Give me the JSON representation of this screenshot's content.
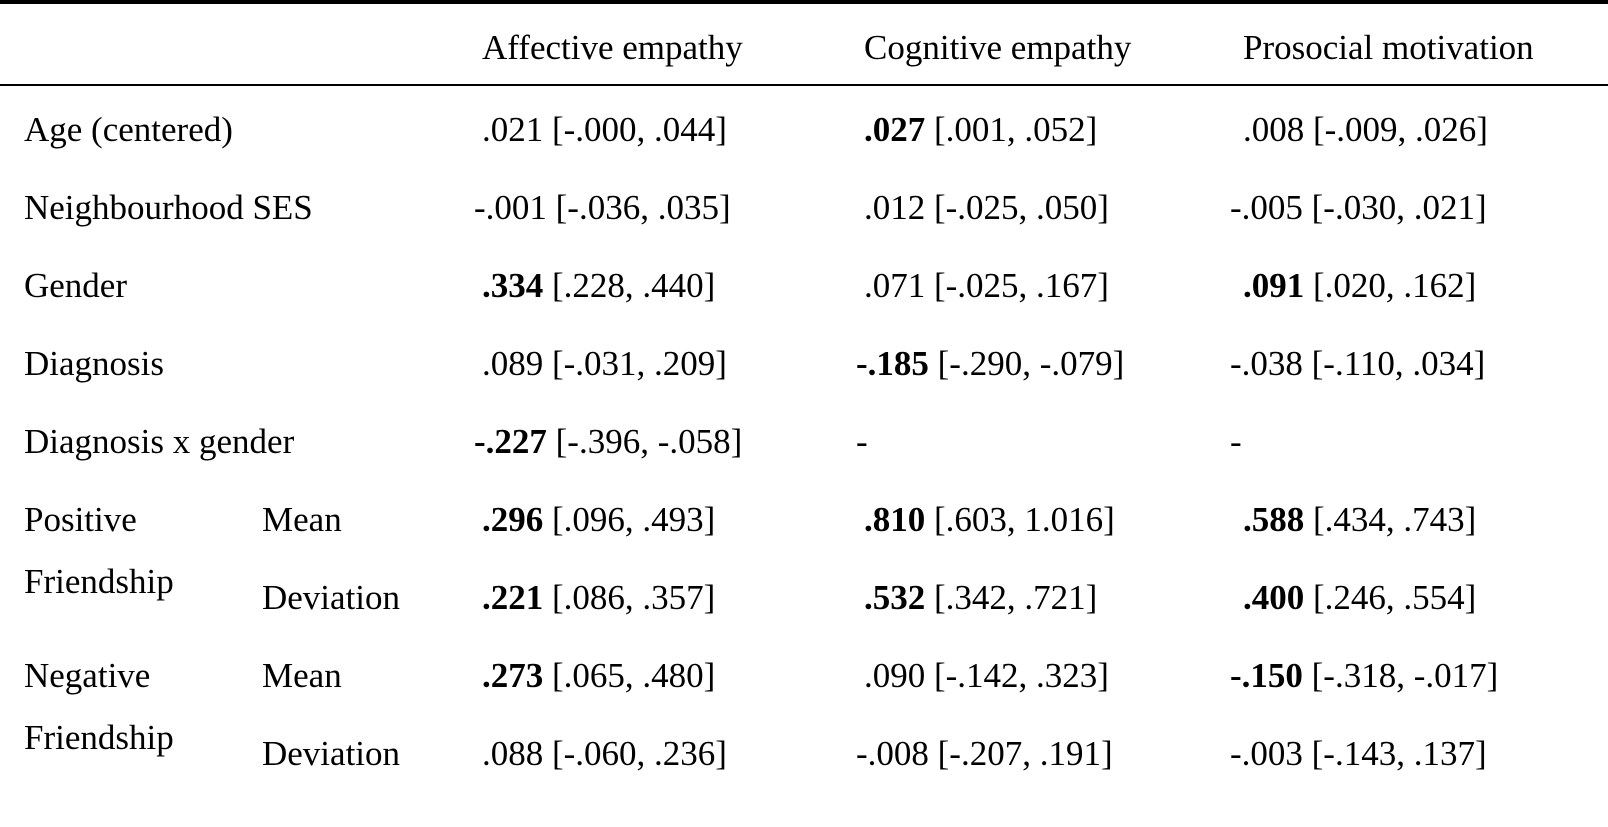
{
  "header": {
    "col1": "",
    "col2": "Affective empathy",
    "col3": "Cognitive empathy",
    "col4": "Prosocial motivation"
  },
  "rows": [
    {
      "label": "Age (centered)",
      "affective": {
        "bold": "",
        "rest": ".021 [-.000, .044]"
      },
      "cognitive": {
        "bold": ".027",
        "rest": " [.001, .052]"
      },
      "prosocial": {
        "bold": "",
        "rest": ".008 [-.009, .026]"
      }
    },
    {
      "label": "Neighbourhood SES",
      "affective": {
        "bold": "",
        "rest": "-.001 [-.036, .035]"
      },
      "cognitive": {
        "bold": "",
        "rest": ".012 [-.025, .050]"
      },
      "prosocial": {
        "bold": "",
        "rest": "-.005 [-.030, .021]"
      }
    },
    {
      "label": "Gender",
      "affective": {
        "bold": ".334",
        "rest": " [.228, .440]"
      },
      "cognitive": {
        "bold": "",
        "rest": ".071 [-.025, .167]"
      },
      "prosocial": {
        "bold": ".091",
        "rest": " [.020, .162]"
      }
    },
    {
      "label": "Diagnosis",
      "affective": {
        "bold": "",
        "rest": ".089 [-.031, .209]"
      },
      "cognitive": {
        "bold": "-.185",
        "rest": " [-.290, -.079]"
      },
      "prosocial": {
        "bold": "",
        "rest": "-.038 [-.110, .034]"
      }
    },
    {
      "label": "Diagnosis x gender",
      "affective": {
        "bold": "-.227",
        "rest": " [-.396, -.058]"
      },
      "cognitive": {
        "bold": "",
        "rest": "-"
      },
      "prosocial": {
        "bold": "",
        "rest": "-"
      }
    }
  ],
  "positive_friendship": {
    "label_line1": "Positive",
    "label_line2": "Friendship",
    "mean": {
      "sublabel": "Mean",
      "affective": {
        "bold": ".296",
        "rest": " [.096, .493]"
      },
      "cognitive": {
        "bold": ".810",
        "rest": " [.603, 1.016]"
      },
      "prosocial": {
        "bold": ".588",
        "rest": " [.434, .743]"
      }
    },
    "deviation": {
      "sublabel": "Deviation",
      "affective": {
        "bold": ".221",
        "rest": " [.086, .357]"
      },
      "cognitive": {
        "bold": ".532",
        "rest": " [.342, .721]"
      },
      "prosocial": {
        "bold": ".400",
        "rest": " [.246, .554]"
      }
    }
  },
  "negative_friendship": {
    "label_line1": "Negative",
    "label_line2": "Friendship",
    "mean": {
      "sublabel": "Mean",
      "affective": {
        "bold": ".273",
        "rest": " [.065, .480]"
      },
      "cognitive": {
        "bold": "",
        "rest": ".090 [-.142, .323]"
      },
      "prosocial": {
        "bold": "-.150",
        "rest": " [-.318, -.017]"
      }
    },
    "deviation": {
      "sublabel": "Deviation",
      "affective": {
        "bold": "",
        "rest": ".088 [-.060, .236]"
      },
      "cognitive": {
        "bold": "",
        "rest": "-.008 [-.207, .191]"
      },
      "prosocial": {
        "bold": "",
        "rest": "-.003 [-.143, .137]"
      }
    }
  }
}
